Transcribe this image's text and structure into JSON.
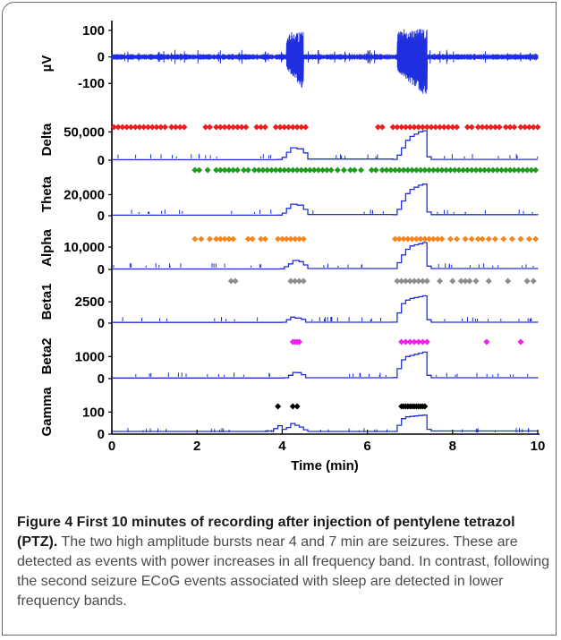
{
  "chart_data": [
    {
      "type": "line",
      "panel": "raw-ecog",
      "ylabel": "µV",
      "yticks": [
        "100",
        "0",
        "-100"
      ],
      "ytick_values": [
        100,
        0,
        -100
      ],
      "ylim": [
        -160,
        110
      ],
      "xlim": [
        0,
        10
      ],
      "series": [
        {
          "values_desc": "noise",
          "bursts": [
            {
              "start": 4.1,
              "end": 4.5,
              "min": -125,
              "max": 95
            },
            {
              "start": 6.7,
              "end": 7.4,
              "min": -155,
              "max": 105
            }
          ]
        }
      ],
      "color": "#1f2fe0"
    },
    {
      "type": "line",
      "panel": "delta",
      "ylabel": "Delta",
      "yticks": [
        "50,000",
        "0"
      ],
      "ytick_values": [
        50000,
        0
      ],
      "ylim": [
        0,
        60000
      ],
      "xlim": [
        0,
        10
      ],
      "x": [
        0,
        3.9,
        4.0,
        4.1,
        4.2,
        4.35,
        4.5,
        4.6,
        6.6,
        6.7,
        6.8,
        6.9,
        7.0,
        7.1,
        7.2,
        7.3,
        7.4,
        7.5,
        10
      ],
      "values": [
        1000,
        1200,
        5000,
        14000,
        22000,
        20000,
        13000,
        2000,
        1500,
        9000,
        22000,
        35000,
        42000,
        46000,
        50000,
        52000,
        6000,
        1500,
        1500
      ],
      "events_color": "#ee1c1c",
      "events": [
        0.05,
        0.15,
        0.25,
        0.35,
        0.45,
        0.55,
        0.65,
        0.75,
        0.85,
        0.95,
        1.05,
        1.15,
        1.25,
        1.4,
        1.5,
        1.6,
        1.7,
        2.2,
        2.3,
        2.45,
        2.55,
        2.65,
        2.75,
        2.85,
        2.95,
        3.05,
        3.15,
        3.4,
        3.5,
        3.6,
        3.85,
        3.95,
        4.05,
        4.15,
        4.25,
        4.35,
        4.45,
        4.55,
        6.25,
        6.35,
        6.6,
        6.7,
        6.8,
        6.9,
        7.0,
        7.1,
        7.2,
        7.3,
        7.4,
        7.5,
        7.6,
        7.7,
        7.8,
        7.9,
        8.0,
        8.1,
        8.35,
        8.45,
        8.6,
        8.7,
        8.8,
        8.9,
        9.0,
        9.1,
        9.25,
        9.35,
        9.45,
        9.6,
        9.7,
        9.8,
        9.9,
        10.0
      ]
    },
    {
      "type": "line",
      "panel": "theta",
      "ylabel": "Theta",
      "yticks": [
        "20,000",
        "0"
      ],
      "ytick_values": [
        20000,
        0
      ],
      "ylim": [
        0,
        34000
      ],
      "xlim": [
        0,
        10
      ],
      "x": [
        0,
        3.9,
        4.0,
        4.1,
        4.2,
        4.35,
        4.5,
        4.6,
        6.6,
        6.7,
        6.8,
        6.9,
        7.0,
        7.1,
        7.2,
        7.3,
        7.4,
        7.5,
        10
      ],
      "values": [
        500,
        600,
        2500,
        7000,
        11000,
        10000,
        6000,
        1200,
        1000,
        6000,
        14000,
        21000,
        25000,
        27000,
        29000,
        30000,
        3500,
        1000,
        800
      ],
      "events_color": "#1e9b1e",
      "events": [
        1.95,
        2.05,
        2.25,
        2.45,
        2.55,
        2.65,
        2.75,
        2.85,
        2.95,
        3.1,
        3.2,
        3.35,
        3.45,
        3.55,
        3.65,
        3.75,
        3.85,
        3.95,
        4.05,
        4.15,
        4.25,
        4.35,
        4.45,
        4.55,
        4.65,
        4.75,
        4.85,
        4.95,
        5.05,
        5.15,
        5.3,
        5.45,
        5.6,
        5.7,
        5.85,
        6.1,
        6.2,
        6.35,
        6.45,
        6.55,
        6.65,
        6.75,
        6.85,
        6.95,
        7.05,
        7.15,
        7.25,
        7.35,
        7.45,
        7.55,
        7.65,
        7.75,
        7.85,
        7.95,
        8.05,
        8.15,
        8.25,
        8.35,
        8.45,
        8.55,
        8.65,
        8.75,
        8.85,
        8.95,
        9.05,
        9.15,
        9.25,
        9.35,
        9.45,
        9.55,
        9.65,
        9.75,
        9.85,
        9.95
      ]
    },
    {
      "type": "line",
      "panel": "alpha",
      "ylabel": "Alpha",
      "yticks": [
        "10,000",
        "0"
      ],
      "ytick_values": [
        10000,
        0
      ],
      "ylim": [
        0,
        16000
      ],
      "xlim": [
        0,
        10
      ],
      "x": [
        0,
        3.95,
        4.05,
        4.15,
        4.25,
        4.4,
        4.5,
        4.6,
        6.6,
        6.7,
        6.8,
        6.9,
        7.0,
        7.1,
        7.2,
        7.3,
        7.4,
        7.5,
        10
      ],
      "values": [
        200,
        300,
        1200,
        2500,
        4000,
        3500,
        2000,
        400,
        400,
        3000,
        6500,
        9000,
        10500,
        11000,
        11500,
        12000,
        1500,
        400,
        300
      ],
      "events_color": "#f5851f",
      "events": [
        1.95,
        2.1,
        2.3,
        2.45,
        2.55,
        2.65,
        2.75,
        2.85,
        3.2,
        3.3,
        3.5,
        3.6,
        3.9,
        4.0,
        4.1,
        4.2,
        4.3,
        4.4,
        4.5,
        6.65,
        6.75,
        6.85,
        6.95,
        7.05,
        7.15,
        7.25,
        7.35,
        7.45,
        7.55,
        7.65,
        7.75,
        7.95,
        8.1,
        8.3,
        8.45,
        8.6,
        8.7,
        8.85,
        9.0,
        9.2,
        9.4,
        9.6,
        9.8,
        9.95
      ]
    },
    {
      "type": "line",
      "panel": "beta1",
      "ylabel": "Beta1",
      "yticks": [
        "2500",
        "0"
      ],
      "ytick_values": [
        2500,
        0
      ],
      "ylim": [
        0,
        4200
      ],
      "xlim": [
        0,
        10
      ],
      "x": [
        0,
        4.0,
        4.1,
        4.2,
        4.3,
        4.45,
        4.55,
        6.6,
        6.7,
        6.8,
        6.9,
        7.0,
        7.1,
        7.2,
        7.3,
        7.4,
        7.5,
        10
      ],
      "values": [
        80,
        100,
        400,
        700,
        600,
        450,
        100,
        120,
        1200,
        2300,
        2700,
        2900,
        3000,
        3100,
        3200,
        400,
        100,
        90
      ],
      "events_color": "#8c8c8c",
      "events": [
        2.8,
        2.9,
        4.2,
        4.3,
        4.4,
        4.5,
        6.7,
        6.8,
        6.9,
        7.0,
        7.1,
        7.2,
        7.3,
        7.4,
        7.7,
        8.0,
        8.2,
        8.3,
        8.4,
        8.55,
        8.85,
        9.3,
        9.75,
        9.9
      ]
    },
    {
      "type": "line",
      "panel": "beta2",
      "ylabel": "Beta2",
      "yticks": [
        "1000",
        "0"
      ],
      "ytick_values": [
        1000,
        0
      ],
      "ylim": [
        0,
        1700
      ],
      "xlim": [
        0,
        10
      ],
      "x": [
        0,
        4.05,
        4.15,
        4.25,
        4.35,
        4.45,
        4.55,
        6.6,
        6.7,
        6.8,
        6.9,
        7.0,
        7.1,
        7.2,
        7.3,
        7.4,
        7.5,
        10
      ],
      "values": [
        30,
        40,
        150,
        280,
        270,
        180,
        40,
        50,
        450,
        850,
        1000,
        1050,
        1100,
        1150,
        1200,
        150,
        40,
        30
      ],
      "events_color": "#f21cf2",
      "events": [
        4.25,
        4.3,
        4.35,
        4.4,
        6.8,
        6.9,
        7.0,
        7.1,
        7.2,
        7.3,
        7.4,
        8.8,
        9.6
      ]
    },
    {
      "type": "line",
      "panel": "gamma",
      "ylabel": "Gamma",
      "yticks": [
        "100",
        "0"
      ],
      "ytick_values": [
        100,
        0
      ],
      "ylim": [
        0,
        170
      ],
      "xlim": [
        0,
        10
      ],
      "xticks": [
        "0",
        "2",
        "4",
        "6",
        "8",
        "10"
      ],
      "xtick_values": [
        0,
        2,
        4,
        6,
        8,
        10
      ],
      "xlabel": "Time (min)",
      "x": [
        0,
        3.6,
        3.8,
        3.9,
        4.0,
        4.1,
        4.2,
        4.3,
        4.4,
        4.5,
        4.6,
        6.6,
        6.7,
        6.8,
        6.9,
        7.0,
        7.1,
        7.2,
        7.3,
        7.4,
        7.5,
        10
      ],
      "values": [
        12,
        14,
        25,
        38,
        22,
        30,
        48,
        40,
        32,
        20,
        12,
        12,
        40,
        70,
        78,
        80,
        82,
        84,
        86,
        22,
        14,
        12
      ],
      "events_color": "#000000",
      "events": [
        3.9,
        4.25,
        4.35,
        6.8,
        6.85,
        6.9,
        6.95,
        7.0,
        7.05,
        7.1,
        7.15,
        7.2,
        7.25,
        7.3,
        7.35
      ]
    }
  ],
  "caption": {
    "title": "Figure 4 First 10 minutes of recording after injection of pentylene tetrazol (PTZ).",
    "body": " The two high amplitude bursts near 4 and 7 min are seizures. These are detected as events with power increases in all frequency band. In contrast, following the second seizure ECoG events associated with sleep are detected in lower frequency bands."
  },
  "colors": {
    "trace": "#1f2fe0",
    "axis": "#000000"
  }
}
